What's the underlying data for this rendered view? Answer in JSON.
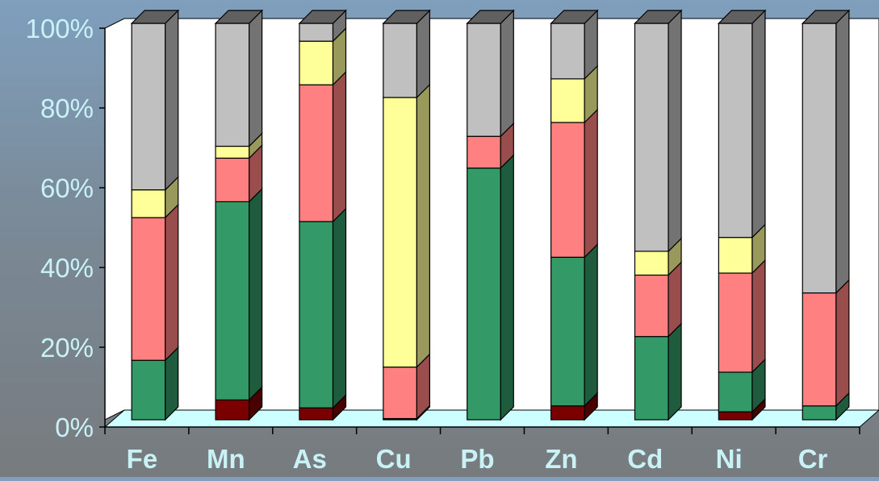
{
  "chart_data": {
    "type": "bar",
    "stacked": "100%",
    "three_d": true,
    "categories": [
      "Fe",
      "Mn",
      "As",
      "Cu",
      "Pb",
      "Zn",
      "Cd",
      "Ni",
      "Cr"
    ],
    "series": [
      {
        "color": "#7a0000",
        "values": [
          0,
          5,
          3,
          0.3,
          0,
          3.5,
          0,
          2,
          0
        ]
      },
      {
        "color": "#339966",
        "values": [
          15,
          50,
          47,
          0,
          63.5,
          37.5,
          21,
          10,
          3.5
        ]
      },
      {
        "color": "#ff8080",
        "values": [
          36,
          11,
          34.5,
          13,
          8,
          34,
          15.5,
          25,
          28.5
        ]
      },
      {
        "color": "#ffff99",
        "values": [
          7,
          3,
          11,
          68,
          0,
          11,
          6,
          9,
          0
        ]
      },
      {
        "color": "#c0c0c0",
        "values": [
          42,
          31,
          4.5,
          18.7,
          28.5,
          14,
          57.5,
          54,
          68
        ]
      }
    ],
    "y_ticks": [
      "0%",
      "20%",
      "40%",
      "60%",
      "80%",
      "100%"
    ],
    "ylim": [
      0,
      100
    ],
    "grid": false,
    "floor_color": "#ccffff",
    "wall_color": "#ffffff",
    "title": "",
    "xlabel": "",
    "ylabel": ""
  }
}
